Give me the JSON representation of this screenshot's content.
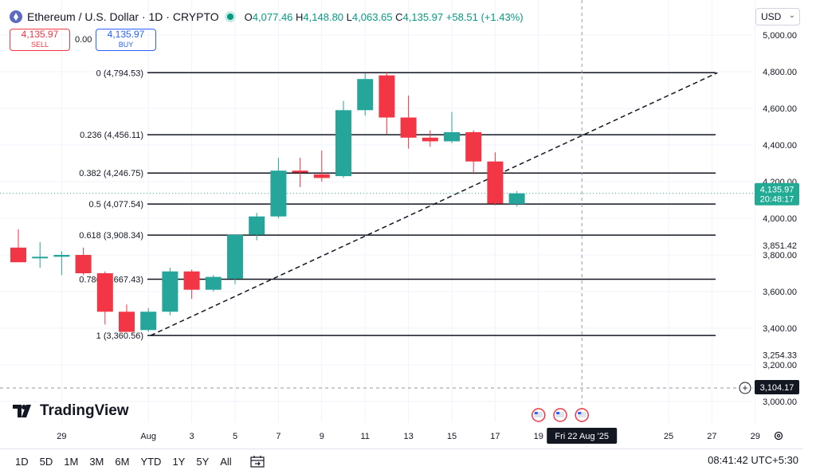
{
  "header": {
    "symbol": "Ethereum / U.S. Dollar · 1D · CRYPTO",
    "o_label": "O",
    "o": "4,077.46",
    "h_label": "H",
    "h": "4,148.80",
    "l_label": "L",
    "l": "4,063.65",
    "c_label": "C",
    "c": "4,135.97",
    "change": "+58.51 (+1.43%)"
  },
  "trade": {
    "sell_price": "4,135.97",
    "sell_label": "SELL",
    "spread": "0.00",
    "buy_price": "4,135.97",
    "buy_label": "BUY"
  },
  "currency": "USD",
  "price_axis": {
    "ticks": [
      "5,000.00",
      "4,800.00",
      "4,600.00",
      "4,400.00",
      "4,200.00",
      "4,000.00",
      "3,800.00",
      "3,600.00",
      "3,400.00",
      "3,200.00",
      "3,000.00"
    ],
    "extra": [
      "3,851.42",
      "3,254.33"
    ],
    "current_price": "4,135.97",
    "countdown": "20:48:17",
    "crosshair_price": "3,104.17"
  },
  "time_axis": {
    "labels": [
      "29",
      "Aug",
      "3",
      "5",
      "7",
      "9",
      "11",
      "13",
      "15",
      "17",
      "19",
      "25",
      "27",
      "29"
    ],
    "crosshair_date": "Fri 22 Aug '25"
  },
  "fib_levels": [
    {
      "ratio": "0",
      "price": "4,794.53"
    },
    {
      "ratio": "0.236",
      "price": "4,456.11"
    },
    {
      "ratio": "0.382",
      "price": "4,246.75"
    },
    {
      "ratio": "0.5",
      "price": "4,077.54"
    },
    {
      "ratio": "0.618",
      "price": "3,908.34"
    },
    {
      "ratio": "0.786",
      "price": "3,667.43"
    },
    {
      "ratio": "1",
      "price": "3,360.56"
    }
  ],
  "chart_data": {
    "type": "candlestick",
    "ylim": [
      3000,
      5000
    ],
    "candles": [
      {
        "date": "Jul 27",
        "o": 3840,
        "h": 3940,
        "l": 3780,
        "c": 3760
      },
      {
        "date": "Jul 28",
        "o": 3790,
        "h": 3870,
        "l": 3730,
        "c": 3790
      },
      {
        "date": "Jul 29",
        "o": 3790,
        "h": 3820,
        "l": 3690,
        "c": 3800
      },
      {
        "date": "Jul 30",
        "o": 3800,
        "h": 3840,
        "l": 3690,
        "c": 3700
      },
      {
        "date": "Jul 31",
        "o": 3700,
        "h": 3710,
        "l": 3420,
        "c": 3490
      },
      {
        "date": "Aug 1",
        "o": 3490,
        "h": 3530,
        "l": 3380,
        "c": 3380
      },
      {
        "date": "Aug 2",
        "o": 3390,
        "h": 3510,
        "l": 3380,
        "c": 3490
      },
      {
        "date": "Aug 3",
        "o": 3490,
        "h": 3730,
        "l": 3470,
        "c": 3710
      },
      {
        "date": "Aug 4",
        "o": 3710,
        "h": 3720,
        "l": 3560,
        "c": 3610
      },
      {
        "date": "Aug 5",
        "o": 3610,
        "h": 3690,
        "l": 3600,
        "c": 3680
      },
      {
        "date": "Aug 6",
        "o": 3670,
        "h": 3910,
        "l": 3640,
        "c": 3910
      },
      {
        "date": "Aug 7",
        "o": 3910,
        "h": 4030,
        "l": 3880,
        "c": 4010
      },
      {
        "date": "Aug 8",
        "o": 4010,
        "h": 4330,
        "l": 4000,
        "c": 4260
      },
      {
        "date": "Aug 9",
        "o": 4260,
        "h": 4330,
        "l": 4170,
        "c": 4250
      },
      {
        "date": "Aug 10",
        "o": 4240,
        "h": 4370,
        "l": 4200,
        "c": 4220
      },
      {
        "date": "Aug 11",
        "o": 4230,
        "h": 4640,
        "l": 4220,
        "c": 4590
      },
      {
        "date": "Aug 12",
        "o": 4590,
        "h": 4790,
        "l": 4560,
        "c": 4760
      },
      {
        "date": "Aug 13",
        "o": 4780,
        "h": 4800,
        "l": 4460,
        "c": 4550
      },
      {
        "date": "Aug 14",
        "o": 4550,
        "h": 4670,
        "l": 4380,
        "c": 4440
      },
      {
        "date": "Aug 15",
        "o": 4440,
        "h": 4480,
        "l": 4390,
        "c": 4420
      },
      {
        "date": "Aug 16",
        "o": 4420,
        "h": 4580,
        "l": 4410,
        "c": 4470
      },
      {
        "date": "Aug 17",
        "o": 4470,
        "h": 4480,
        "l": 4240,
        "c": 4310
      },
      {
        "date": "Aug 18",
        "o": 4310,
        "h": 4360,
        "l": 4070,
        "c": 4080
      },
      {
        "date": "Aug 19",
        "o": 4077.46,
        "h": 4148.8,
        "l": 4063.65,
        "c": 4135.97
      }
    ],
    "trendline": {
      "from": {
        "date": "Aug 2",
        "price": 3360.56
      },
      "to": {
        "date": "Aug 28",
        "price": 4794.53
      }
    }
  },
  "watermark": "TradingView",
  "bottom_bar": {
    "ranges": [
      "1D",
      "5D",
      "1M",
      "3M",
      "6M",
      "YTD",
      "1Y",
      "5Y",
      "All"
    ],
    "clock": "08:41:42 UTC+5:30"
  },
  "colors": {
    "up": "#26a69a",
    "down": "#f23645",
    "crosshair_bg": "#131722",
    "price_tag": "#22ab94"
  }
}
